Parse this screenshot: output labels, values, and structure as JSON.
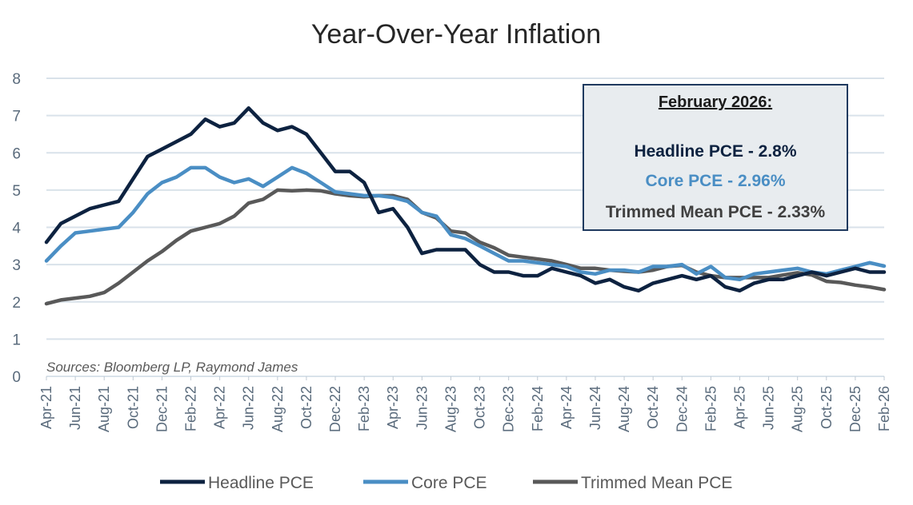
{
  "chart_data": {
    "type": "line",
    "title": "Year-Over-Year Inflation",
    "xlabel": "",
    "ylabel": "",
    "ylim": [
      0,
      8
    ],
    "yticks": [
      "0",
      "1",
      "2",
      "3",
      "4",
      "5",
      "6",
      "7",
      "8"
    ],
    "grid": true,
    "legend_position": "bottom",
    "source_note": "Sources: Bloomberg LP, Raymond James",
    "x_tick_labels": [
      "Apr-21",
      "Jun-21",
      "Aug-21",
      "Oct-21",
      "Dec-21",
      "Feb-22",
      "Apr-22",
      "Jun-22",
      "Aug-22",
      "Oct-22",
      "Dec-22",
      "Feb-23",
      "Apr-23",
      "Jun-23",
      "Aug-23",
      "Oct-23",
      "Dec-23",
      "Feb-24",
      "Apr-24",
      "Jun-24",
      "Aug-24",
      "Oct-24",
      "Dec-24",
      "Feb-25",
      "Apr-25",
      "Jun-25",
      "Aug-25",
      "Oct-25",
      "Dec-25",
      "Feb-26"
    ],
    "x": [
      "Apr-21",
      "May-21",
      "Jun-21",
      "Jul-21",
      "Aug-21",
      "Sep-21",
      "Oct-21",
      "Nov-21",
      "Dec-21",
      "Jan-22",
      "Feb-22",
      "Mar-22",
      "Apr-22",
      "May-22",
      "Jun-22",
      "Jul-22",
      "Aug-22",
      "Sep-22",
      "Oct-22",
      "Nov-22",
      "Dec-22",
      "Jan-23",
      "Feb-23",
      "Mar-23",
      "Apr-23",
      "May-23",
      "Jun-23",
      "Jul-23",
      "Aug-23",
      "Sep-23",
      "Oct-23",
      "Nov-23",
      "Dec-23",
      "Jan-24",
      "Feb-24",
      "Mar-24",
      "Apr-24",
      "May-24",
      "Jun-24",
      "Jul-24",
      "Aug-24",
      "Sep-24",
      "Oct-24",
      "Nov-24",
      "Dec-24",
      "Jan-25",
      "Feb-25",
      "Mar-25",
      "Apr-25",
      "May-25",
      "Jun-25",
      "Jul-25",
      "Aug-25",
      "Sep-25",
      "Oct-25",
      "Nov-25",
      "Dec-25",
      "Jan-26",
      "Feb-26"
    ],
    "series": [
      {
        "name": "Headline PCE",
        "color": "#0d2240",
        "values": [
          3.6,
          4.1,
          4.3,
          4.5,
          4.6,
          4.7,
          5.3,
          5.9,
          6.1,
          6.3,
          6.5,
          6.9,
          6.7,
          6.8,
          7.2,
          6.8,
          6.6,
          6.7,
          6.5,
          6.0,
          5.5,
          5.5,
          5.2,
          4.4,
          4.5,
          4.0,
          3.3,
          3.4,
          3.4,
          3.4,
          3.0,
          2.8,
          2.8,
          2.7,
          2.7,
          2.9,
          2.8,
          2.7,
          2.5,
          2.6,
          2.4,
          2.3,
          2.5,
          2.6,
          2.7,
          2.6,
          2.7,
          2.4,
          2.3,
          2.5,
          2.6,
          2.6,
          2.7,
          2.8,
          2.7,
          2.8,
          2.9,
          2.8,
          2.8
        ]
      },
      {
        "name": "Core PCE",
        "color": "#4a8ec4",
        "values": [
          3.1,
          3.5,
          3.85,
          3.9,
          3.95,
          4.0,
          4.4,
          4.9,
          5.2,
          5.35,
          5.6,
          5.6,
          5.35,
          5.2,
          5.3,
          5.1,
          5.35,
          5.6,
          5.45,
          5.2,
          4.95,
          4.9,
          4.85,
          4.85,
          4.8,
          4.7,
          4.4,
          4.3,
          3.8,
          3.7,
          3.5,
          3.3,
          3.1,
          3.1,
          3.05,
          3.0,
          2.95,
          2.8,
          2.75,
          2.85,
          2.85,
          2.8,
          2.95,
          2.95,
          3.0,
          2.75,
          2.95,
          2.65,
          2.6,
          2.75,
          2.8,
          2.85,
          2.9,
          2.8,
          2.75,
          2.85,
          2.95,
          3.05,
          2.96
        ]
      },
      {
        "name": "Trimmed Mean PCE",
        "color": "#595959",
        "values": [
          1.95,
          2.05,
          2.1,
          2.15,
          2.25,
          2.5,
          2.8,
          3.1,
          3.35,
          3.65,
          3.9,
          4.0,
          4.1,
          4.3,
          4.65,
          4.75,
          5.0,
          4.98,
          5.0,
          4.98,
          4.9,
          4.85,
          4.82,
          4.85,
          4.85,
          4.75,
          4.4,
          4.25,
          3.9,
          3.85,
          3.6,
          3.45,
          3.25,
          3.2,
          3.15,
          3.1,
          3.0,
          2.9,
          2.9,
          2.85,
          2.82,
          2.8,
          2.85,
          2.95,
          2.98,
          2.8,
          2.7,
          2.65,
          2.65,
          2.65,
          2.65,
          2.72,
          2.78,
          2.72,
          2.55,
          2.52,
          2.45,
          2.4,
          2.33
        ]
      }
    ],
    "callout": {
      "title": "February 2026:",
      "lines": [
        {
          "text": "Headline PCE - 2.8%",
          "color": "#0d2240"
        },
        {
          "text": "Core PCE - 2.96%",
          "color": "#4a8ec4"
        },
        {
          "text": "Trimmed Mean PCE - 2.33%",
          "color": "#404040"
        }
      ]
    },
    "colors": {
      "grid": "#d9e2ea",
      "axis_text": "#5a6b7c",
      "callout_bg": "#e8ecef",
      "callout_border": "#1f3a5f"
    }
  }
}
